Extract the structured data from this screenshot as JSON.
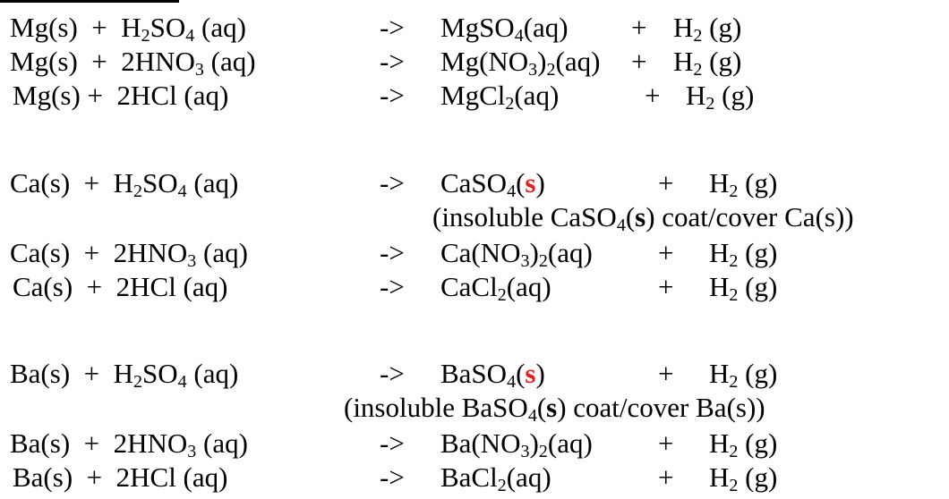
{
  "colors": {
    "text": "#000000",
    "highlight": "#e02020",
    "background": "#ffffff"
  },
  "equations": [
    {
      "reactants": [
        [
          "Mg(s)  +  H",
          "2",
          "SO",
          "4",
          " (aq)"
        ]
      ],
      "arrow": "->",
      "product": [
        [
          "MgSO",
          "4",
          "(aq)"
        ]
      ],
      "plus": "+",
      "gas": [
        [
          "H",
          "2",
          " (g)"
        ]
      ]
    }
  ],
  "rows": {
    "r1": {
      "left": "Mg(s)  +  H",
      "left_sub1": "2",
      "left_mid": "SO",
      "left_sub2": "4",
      "left_end": " (aq)",
      "arrow": "->",
      "prod_a": "MgSO",
      "prod_sub": "4",
      "prod_b": "(aq)",
      "plus": "+",
      "gas_a": "H",
      "gas_sub": "2",
      "gas_b": " (g)"
    },
    "r2": {
      "left": "Mg(s)  +  2HNO",
      "left_sub": "3",
      "left_end": " (aq)",
      "arrow": "->",
      "prod_a": "Mg(NO",
      "prod_sub1": "3",
      "prod_mid": ")",
      "prod_sub2": "2",
      "prod_b": "(aq)",
      "plus": "+",
      "gas_a": "H",
      "gas_sub": "2",
      "gas_b": " (g)"
    },
    "r3": {
      "left": "Mg(s) +  2HCl (aq)",
      "arrow": "->",
      "prod_a": "MgCl",
      "prod_sub": "2",
      "prod_b": "(aq)",
      "plus": "+",
      "gas_a": "H",
      "gas_sub": "2",
      "gas_b": " (g)"
    },
    "r4": {
      "left": "Ca(s)  +  H",
      "left_sub1": "2",
      "left_mid": "SO",
      "left_sub2": "4",
      "left_end": " (aq)",
      "arrow": "->",
      "prod_a": "CaSO",
      "prod_sub": "4",
      "prod_open": "(",
      "prod_state": "s",
      "prod_close": ")",
      "plus": "+",
      "gas_a": "H",
      "gas_sub": "2",
      "gas_b": " (g)"
    },
    "r4n": {
      "a": "(insoluble CaSO",
      "sub": "4",
      "b": "(",
      "s": "s",
      "c": ") coat/cover Ca(s))"
    },
    "r5": {
      "left": "Ca(s)  +  2HNO",
      "left_sub": "3",
      "left_end": " (aq)",
      "arrow": "->",
      "prod_a": "Ca(NO",
      "prod_sub1": "3",
      "prod_mid": ")",
      "prod_sub2": "2",
      "prod_b": "(aq)",
      "plus": "+",
      "gas_a": "H",
      "gas_sub": "2",
      "gas_b": " (g)"
    },
    "r6": {
      "left": "Ca(s)  +  2HCl (aq)",
      "arrow": "->",
      "prod_a": "CaCl",
      "prod_sub": "2",
      "prod_b": "(aq)",
      "plus": "+",
      "gas_a": "H",
      "gas_sub": "2",
      "gas_b": " (g)"
    },
    "r7": {
      "left": "Ba(s)  +  H",
      "left_sub1": "2",
      "left_mid": "SO",
      "left_sub2": "4",
      "left_end": " (aq)",
      "arrow": "->",
      "prod_a": "BaSO",
      "prod_sub": "4",
      "prod_open": "(",
      "prod_state": "s",
      "prod_close": ")",
      "plus": "+",
      "gas_a": "H",
      "gas_sub": "2",
      "gas_b": " (g)"
    },
    "r7n": {
      "a": "(insoluble BaSO",
      "sub": "4",
      "b": "(",
      "s": "s",
      "c": ") coat/cover Ba(s))"
    },
    "r8": {
      "left": "Ba(s)  +  2HNO",
      "left_sub": "3",
      "left_end": " (aq)",
      "arrow": "->",
      "prod_a": "Ba(NO",
      "prod_sub1": "3",
      "prod_mid": ")",
      "prod_sub2": "2",
      "prod_b": "(aq)",
      "plus": "+",
      "gas_a": "H",
      "gas_sub": "2",
      "gas_b": " (g)"
    },
    "r9": {
      "left": "Ba(s)  +  2HCl (aq)",
      "arrow": "->",
      "prod_a": "BaCl",
      "prod_sub": "2",
      "prod_b": "(aq)",
      "plus": "+",
      "gas_a": "H",
      "gas_sub": "2",
      "gas_b": " (g)"
    }
  }
}
